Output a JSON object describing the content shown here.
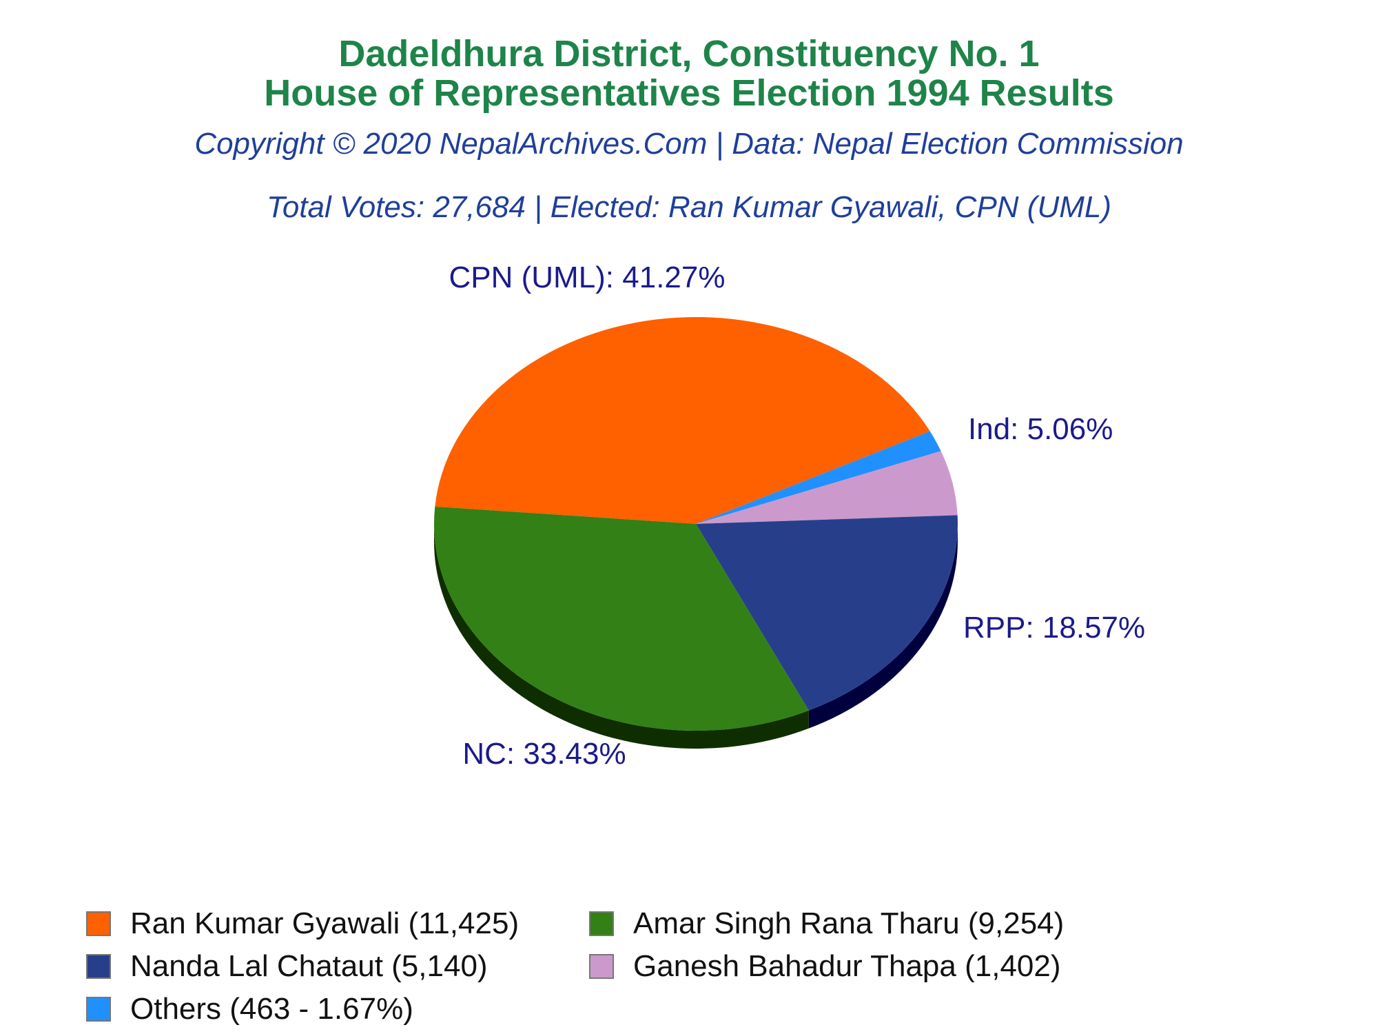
{
  "header": {
    "title_line1": "Dadeldhura District, Constituency No. 1",
    "title_line2": "House of Representatives Election 1994 Results",
    "copyright": "Copyright © 2020 NepalArchives.Com | Data: Nepal Election Commission",
    "summary": "Total Votes: 27,684 | Elected: Ran Kumar Gyawali, CPN (UML)"
  },
  "colors": {
    "title": "#1e8449",
    "subtitle": "#1f3f99",
    "label": "#1a1a8c"
  },
  "chart_data": {
    "type": "pie",
    "title": "Dadeldhura District, Constituency No. 1",
    "total_votes": 27684,
    "slices": [
      {
        "party": "CPN (UML)",
        "label": "CPN (UML): 41.27%",
        "candidate": "Ran Kumar Gyawali",
        "votes": 11425,
        "percent": 41.27,
        "color": "#ff6000",
        "side_color": "#7a2e00"
      },
      {
        "party": "Others",
        "label": "",
        "candidate": "Others",
        "votes": 463,
        "percent": 1.67,
        "color": "#2190ff",
        "side_color": "#0a3d77"
      },
      {
        "party": "Ind",
        "label": "Ind: 5.06%",
        "candidate": "Ganesh Bahadur Thapa",
        "votes": 1402,
        "percent": 5.06,
        "color": "#cc99cc",
        "side_color": "#5c3d5c"
      },
      {
        "party": "RPP",
        "label": "RPP: 18.57%",
        "candidate": "Nanda Lal Chataut",
        "votes": 5140,
        "percent": 18.57,
        "color": "#273f8a",
        "side_color": "#00003f"
      },
      {
        "party": "NC",
        "label": "NC: 33.43%",
        "candidate": "Amar Singh Rana Tharu",
        "votes": 9254,
        "percent": 33.43,
        "color": "#338016",
        "side_color": "#0f2e00"
      }
    ],
    "legend": [
      {
        "label": "Ran Kumar Gyawali (11,425)",
        "color": "#ff6000"
      },
      {
        "label": "Amar Singh Rana Tharu (9,254)",
        "color": "#338016"
      },
      {
        "label": "Nanda Lal Chataut (5,140)",
        "color": "#273f8a"
      },
      {
        "label": "Ganesh Bahadur Thapa (1,402)",
        "color": "#cc99cc"
      },
      {
        "label": "Others (463 - 1.67%)",
        "color": "#2190ff"
      }
    ],
    "legend_placement": "bottom"
  }
}
